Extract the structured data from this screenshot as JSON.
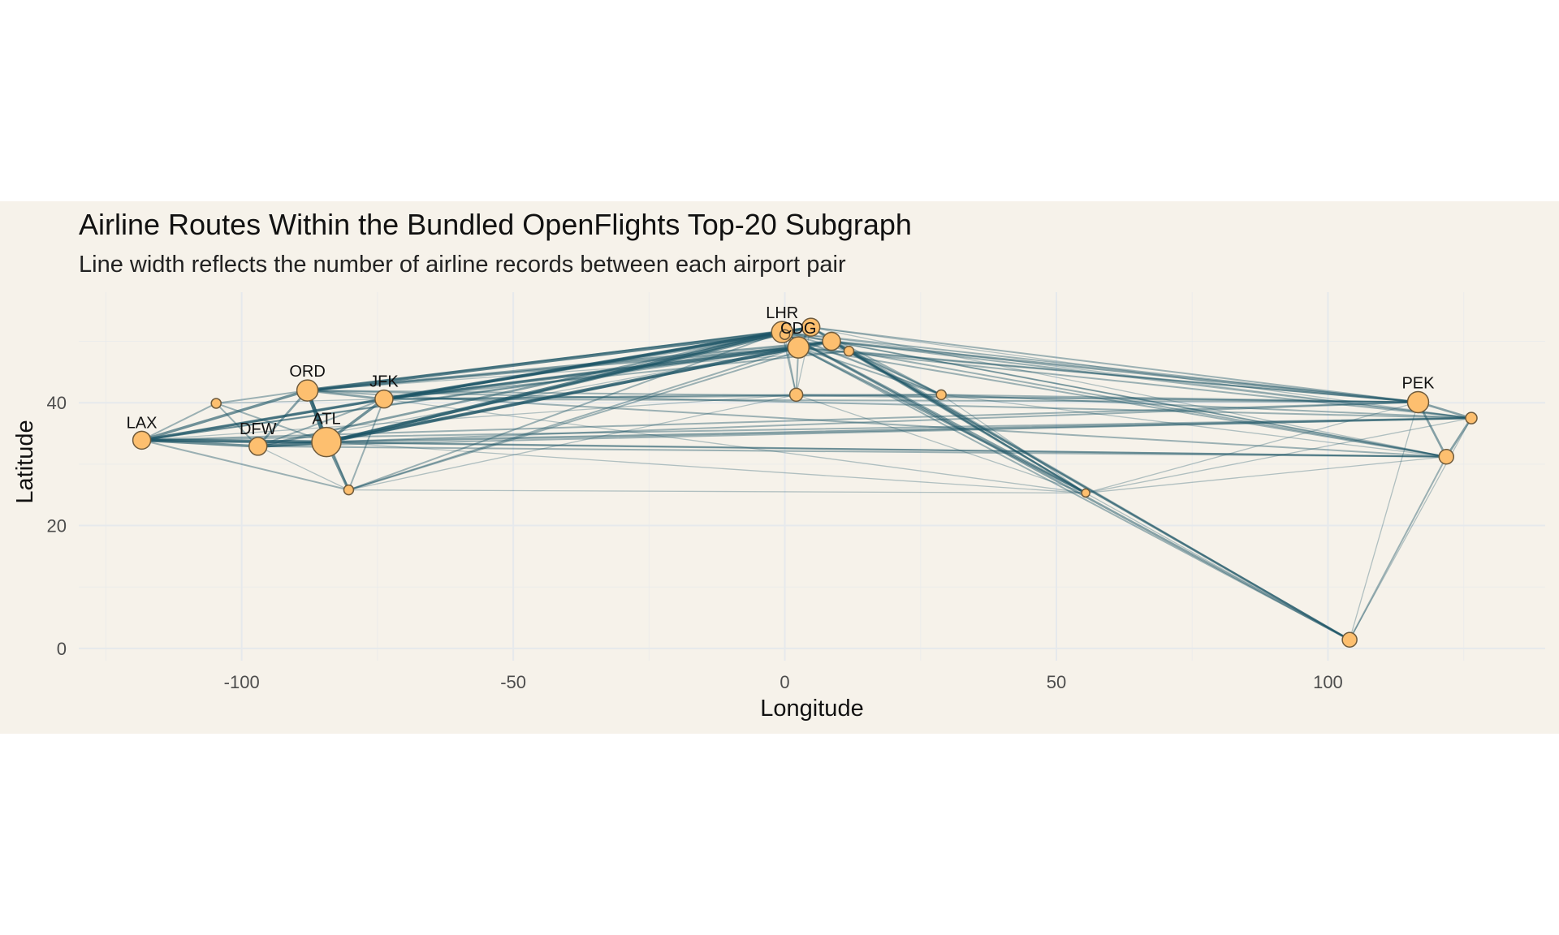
{
  "chart_data": {
    "type": "network-map",
    "title": "Airline Routes Within the Bundled OpenFlights Top-20 Subgraph",
    "subtitle": "Line width reflects the number of airline records between each airport pair",
    "xlabel": "Longitude",
    "ylabel": "Latitude",
    "xlim": [
      -130,
      140
    ],
    "ylim": [
      -2,
      58
    ],
    "xticks": [
      -100,
      -50,
      0,
      50,
      100
    ],
    "xtick_labels": [
      "-100",
      "-50",
      "0",
      "50",
      "100"
    ],
    "yticks": [
      0,
      20,
      40
    ],
    "ytick_labels": [
      "0",
      "20",
      "40"
    ],
    "grid": true,
    "colors": {
      "background": "#f6f2ea",
      "grid": "#e6e9ec",
      "edge": "#1d5566",
      "node_fill": "#fdbf6f",
      "node_stroke": "#6e5a3c"
    },
    "airports": [
      {
        "code": "LAX",
        "lon": -118.4,
        "lat": 33.9,
        "size": 11,
        "label": "LAX"
      },
      {
        "code": "DEN",
        "lon": -104.7,
        "lat": 39.9,
        "size": 6,
        "label": ""
      },
      {
        "code": "DFW",
        "lon": -97.0,
        "lat": 32.9,
        "size": 11,
        "label": "DFW"
      },
      {
        "code": "ORD",
        "lon": -87.9,
        "lat": 42.0,
        "size": 13,
        "label": "ORD"
      },
      {
        "code": "ATL",
        "lon": -84.4,
        "lat": 33.6,
        "size": 18,
        "label": "ATL"
      },
      {
        "code": "MIA",
        "lon": -80.3,
        "lat": 25.8,
        "size": 6,
        "label": ""
      },
      {
        "code": "JFK",
        "lon": -73.8,
        "lat": 40.6,
        "size": 11,
        "label": "JFK"
      },
      {
        "code": "LHR",
        "lon": -0.5,
        "lat": 51.5,
        "size": 13,
        "label": "LHR"
      },
      {
        "code": "LGW",
        "lon": 0.0,
        "lat": 51.1,
        "size": 6,
        "label": ""
      },
      {
        "code": "AMS",
        "lon": 4.8,
        "lat": 52.3,
        "size": 11,
        "label": ""
      },
      {
        "code": "CDG",
        "lon": 2.5,
        "lat": 49.0,
        "size": 13,
        "label": "CDG"
      },
      {
        "code": "FRA",
        "lon": 8.6,
        "lat": 50.0,
        "size": 11,
        "label": ""
      },
      {
        "code": "MUC",
        "lon": 11.8,
        "lat": 48.4,
        "size": 6,
        "label": ""
      },
      {
        "code": "BCN",
        "lon": 2.1,
        "lat": 41.3,
        "size": 8,
        "label": ""
      },
      {
        "code": "IST",
        "lon": 28.8,
        "lat": 41.3,
        "size": 6,
        "label": ""
      },
      {
        "code": "DXB",
        "lon": 55.4,
        "lat": 25.3,
        "size": 5,
        "label": ""
      },
      {
        "code": "SIN",
        "lon": 103.99,
        "lat": 1.4,
        "size": 9,
        "label": ""
      },
      {
        "code": "PEK",
        "lon": 116.6,
        "lat": 40.1,
        "size": 13,
        "label": "PEK"
      },
      {
        "code": "PVG",
        "lon": 121.8,
        "lat": 31.2,
        "size": 9,
        "label": ""
      },
      {
        "code": "ICN",
        "lon": 126.4,
        "lat": 37.5,
        "size": 7,
        "label": ""
      }
    ],
    "routes": [
      [
        "LAX",
        "DEN",
        2
      ],
      [
        "LAX",
        "DFW",
        4
      ],
      [
        "LAX",
        "ORD",
        4
      ],
      [
        "LAX",
        "ATL",
        5
      ],
      [
        "LAX",
        "JFK",
        4
      ],
      [
        "LAX",
        "LHR",
        3
      ],
      [
        "LAX",
        "CDG",
        2
      ],
      [
        "LAX",
        "PEK",
        2
      ],
      [
        "LAX",
        "PVG",
        2
      ],
      [
        "LAX",
        "ICN",
        2
      ],
      [
        "LAX",
        "MIA",
        2
      ],
      [
        "LAX",
        "FRA",
        2
      ],
      [
        "DEN",
        "ORD",
        2
      ],
      [
        "DEN",
        "ATL",
        2
      ],
      [
        "DEN",
        "DFW",
        2
      ],
      [
        "DEN",
        "JFK",
        1
      ],
      [
        "DFW",
        "ORD",
        3
      ],
      [
        "DFW",
        "ATL",
        5
      ],
      [
        "DFW",
        "MIA",
        1
      ],
      [
        "DFW",
        "JFK",
        2
      ],
      [
        "DFW",
        "LHR",
        3
      ],
      [
        "DFW",
        "FRA",
        1
      ],
      [
        "ORD",
        "ATL",
        6
      ],
      [
        "ORD",
        "JFK",
        3
      ],
      [
        "ORD",
        "LHR",
        5
      ],
      [
        "ORD",
        "CDG",
        3
      ],
      [
        "ORD",
        "FRA",
        3
      ],
      [
        "ORD",
        "AMS",
        2
      ],
      [
        "ORD",
        "PEK",
        2
      ],
      [
        "ORD",
        "MUC",
        1
      ],
      [
        "ORD",
        "MIA",
        2
      ],
      [
        "ATL",
        "JFK",
        4
      ],
      [
        "ATL",
        "MIA",
        4
      ],
      [
        "ATL",
        "LHR",
        5
      ],
      [
        "ATL",
        "CDG",
        5
      ],
      [
        "ATL",
        "AMS",
        4
      ],
      [
        "ATL",
        "FRA",
        3
      ],
      [
        "ATL",
        "PEK",
        2
      ],
      [
        "ATL",
        "PVG",
        2
      ],
      [
        "ATL",
        "ICN",
        3
      ],
      [
        "ATL",
        "DXB",
        1
      ],
      [
        "JFK",
        "MIA",
        2
      ],
      [
        "JFK",
        "LHR",
        5
      ],
      [
        "JFK",
        "CDG",
        4
      ],
      [
        "JFK",
        "FRA",
        3
      ],
      [
        "JFK",
        "AMS",
        3
      ],
      [
        "JFK",
        "BCN",
        2
      ],
      [
        "JFK",
        "IST",
        2
      ],
      [
        "JFK",
        "DXB",
        1
      ],
      [
        "JFK",
        "PEK",
        2
      ],
      [
        "JFK",
        "MUC",
        2
      ],
      [
        "JFK",
        "LGW",
        2
      ],
      [
        "MIA",
        "LHR",
        2
      ],
      [
        "MIA",
        "CDG",
        2
      ],
      [
        "MIA",
        "FRA",
        2
      ],
      [
        "MIA",
        "BCN",
        1
      ],
      [
        "LHR",
        "CDG",
        3
      ],
      [
        "LHR",
        "AMS",
        3
      ],
      [
        "LHR",
        "FRA",
        3
      ],
      [
        "LHR",
        "MUC",
        2
      ],
      [
        "LHR",
        "BCN",
        2
      ],
      [
        "LHR",
        "IST",
        2
      ],
      [
        "LHR",
        "DXB",
        3
      ],
      [
        "LHR",
        "SIN",
        3
      ],
      [
        "LHR",
        "PEK",
        2
      ],
      [
        "LHR",
        "PVG",
        1
      ],
      [
        "LHR",
        "ICN",
        1
      ],
      [
        "CDG",
        "AMS",
        3
      ],
      [
        "CDG",
        "FRA",
        3
      ],
      [
        "CDG",
        "BCN",
        2
      ],
      [
        "CDG",
        "IST",
        2
      ],
      [
        "CDG",
        "DXB",
        3
      ],
      [
        "CDG",
        "SIN",
        2
      ],
      [
        "CDG",
        "PEK",
        2
      ],
      [
        "CDG",
        "PVG",
        2
      ],
      [
        "CDG",
        "ICN",
        2
      ],
      [
        "AMS",
        "FRA",
        2
      ],
      [
        "AMS",
        "BCN",
        1
      ],
      [
        "AMS",
        "IST",
        2
      ],
      [
        "AMS",
        "DXB",
        2
      ],
      [
        "AMS",
        "SIN",
        2
      ],
      [
        "AMS",
        "PEK",
        2
      ],
      [
        "AMS",
        "PVG",
        1
      ],
      [
        "AMS",
        "ICN",
        1
      ],
      [
        "FRA",
        "MUC",
        2
      ],
      [
        "FRA",
        "IST",
        2
      ],
      [
        "FRA",
        "DXB",
        3
      ],
      [
        "FRA",
        "SIN",
        3
      ],
      [
        "FRA",
        "PEK",
        3
      ],
      [
        "FRA",
        "PVG",
        2
      ],
      [
        "FRA",
        "ICN",
        2
      ],
      [
        "MUC",
        "IST",
        2
      ],
      [
        "MUC",
        "DXB",
        2
      ],
      [
        "MUC",
        "SIN",
        2
      ],
      [
        "MUC",
        "PEK",
        2
      ],
      [
        "MUC",
        "PVG",
        2
      ],
      [
        "BCN",
        "IST",
        2
      ],
      [
        "BCN",
        "DXB",
        1
      ],
      [
        "BCN",
        "PEK",
        1
      ],
      [
        "IST",
        "PEK",
        2
      ],
      [
        "IST",
        "ICN",
        2
      ],
      [
        "IST",
        "PVG",
        1
      ],
      [
        "IST",
        "DXB",
        1
      ],
      [
        "DXB",
        "PEK",
        1
      ],
      [
        "DXB",
        "PVG",
        1
      ],
      [
        "DXB",
        "ICN",
        1
      ],
      [
        "DXB",
        "SIN",
        1
      ],
      [
        "SIN",
        "PEK",
        1
      ],
      [
        "SIN",
        "PVG",
        2
      ],
      [
        "SIN",
        "ICN",
        1
      ],
      [
        "PEK",
        "PVG",
        3
      ],
      [
        "PEK",
        "ICN",
        3
      ],
      [
        "PVG",
        "ICN",
        3
      ],
      [
        "LGW",
        "BCN",
        1
      ],
      [
        "LGW",
        "IST",
        1
      ],
      [
        "LAX",
        "BCN",
        1
      ],
      [
        "DFW",
        "PVG",
        2
      ],
      [
        "DFW",
        "ICN",
        2
      ],
      [
        "ORD",
        "ICN",
        2
      ],
      [
        "ORD",
        "PVG",
        2
      ],
      [
        "MIA",
        "DXB",
        1
      ]
    ]
  }
}
